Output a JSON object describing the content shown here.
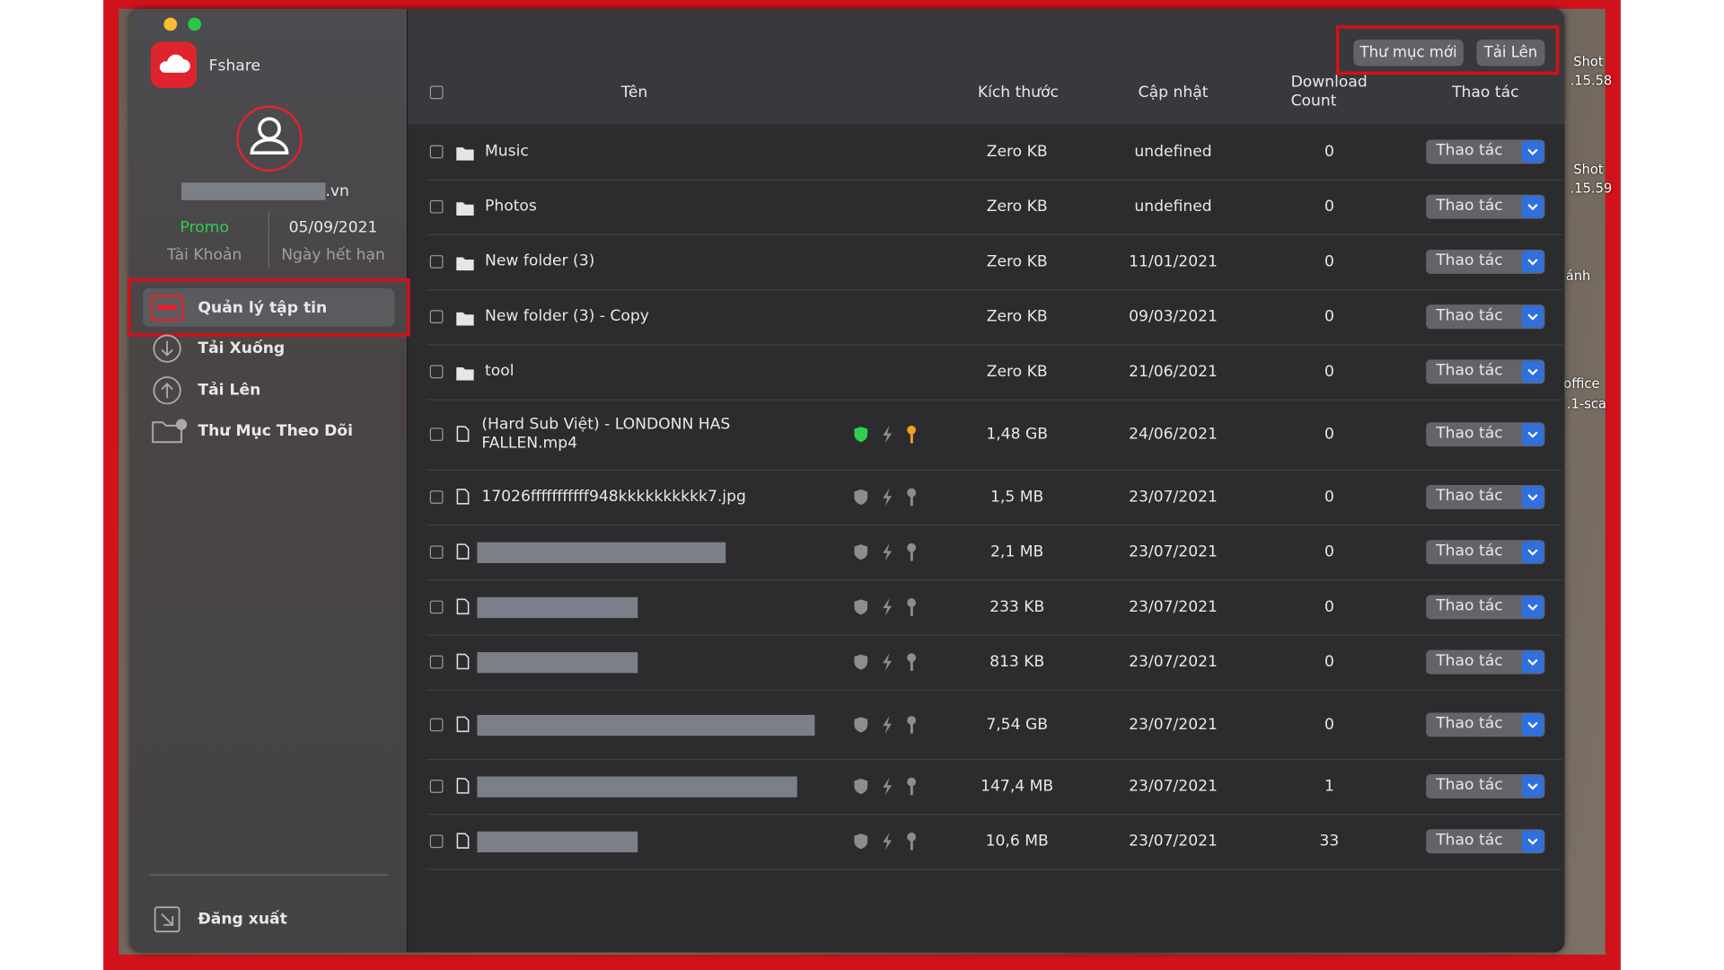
{
  "sidebar": {
    "app_name": "Fshare",
    "email": ".vn",
    "account_type": "Promo",
    "account_label": "Tài Khoản",
    "expiry": "05/09/2021",
    "expiry_label": "Ngày hết hạn",
    "nav": [
      "Quản lý tập tin",
      "Tải Xuống",
      "Tải Lên",
      "Thư Mục Theo Dõi"
    ],
    "logout": "Đăng xuất"
  },
  "toolbar": {
    "buttons": [
      "Thư mục mới",
      "Tải Lên"
    ]
  },
  "table": {
    "headers": [
      "Tên",
      "Kích thước",
      "Cập nhật",
      "Download Count",
      "Thao tác"
    ],
    "rows": [
      {
        "type": "folder",
        "name": "Music",
        "size": "Zero KB",
        "updated": "undefined",
        "downloads": 0,
        "action": "Thao tác"
      },
      {
        "type": "folder",
        "name": "Photos",
        "size": "Zero KB",
        "updated": "undefined",
        "downloads": 0,
        "action": "Thao tác"
      },
      {
        "type": "folder",
        "name": "New folder (3)",
        "size": "Zero KB",
        "updated": "11/01/2021",
        "downloads": 0,
        "action": "Thao tác"
      },
      {
        "type": "folder",
        "name": "New folder (3) - Copy",
        "size": "Zero KB",
        "updated": "09/03/2021",
        "downloads": 0,
        "action": "Thao tác"
      },
      {
        "type": "folder",
        "name": "tool",
        "size": "Zero KB",
        "updated": "21/06/2021",
        "downloads": 0,
        "action": "Thao tác"
      },
      {
        "type": "file",
        "name": "(Hard Sub Việt) - LONDONN HAS FALLEN.mp4",
        "size": "1,48 GB",
        "updated": "24/06/2021",
        "downloads": 0,
        "action": "Thao tác"
      },
      {
        "type": "file",
        "name": "17026fffffffffff948kkkkkkkkkk7.jpg",
        "size": "1,5 MB",
        "updated": "23/07/2021",
        "downloads": 0,
        "action": "Thao tác"
      },
      {
        "type": "file",
        "name": null,
        "size": "2,1 MB",
        "updated": "23/07/2021",
        "downloads": 0,
        "action": "Thao tác"
      },
      {
        "type": "file",
        "name": null,
        "size": "233 KB",
        "updated": "23/07/2021",
        "downloads": 0,
        "action": "Thao tác"
      },
      {
        "type": "file",
        "name": null,
        "size": "813 KB",
        "updated": "23/07/2021",
        "downloads": 0,
        "action": "Thao tác"
      },
      {
        "type": "file",
        "name": null,
        "size": "7,54 GB",
        "updated": "23/07/2021",
        "downloads": 0,
        "action": "Thao tác"
      },
      {
        "type": "file",
        "name": null,
        "size": "147,4 MB",
        "updated": "23/07/2021",
        "downloads": 1,
        "action": "Thao tác"
      },
      {
        "type": "file",
        "name": null,
        "size": "10,6 MB",
        "updated": "23/07/2021",
        "downloads": 33,
        "action": "Thao tác"
      }
    ]
  },
  "desktop": {
    "labels": [
      "Shot",
      ".15.58",
      "Shot",
      ".15.59",
      "ánh",
      "office",
      ".1-sca"
    ]
  }
}
